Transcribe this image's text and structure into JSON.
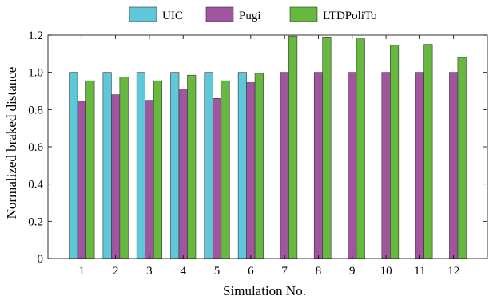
{
  "chart_data": {
    "type": "bar",
    "title": "",
    "xlabel": "Simulation No.",
    "ylabel": "Normalized braked distance",
    "categories": [
      "1",
      "2",
      "3",
      "4",
      "5",
      "6",
      "7",
      "8",
      "9",
      "10",
      "11",
      "12"
    ],
    "ylim": [
      0,
      1.2
    ],
    "yticks": [
      0,
      0.2,
      0.4,
      0.6,
      0.8,
      1.0,
      1.2
    ],
    "ytick_labels": [
      "0",
      "0.2",
      "0.4",
      "0.6",
      "0.8",
      "1.0",
      "1.2"
    ],
    "grid": false,
    "legend_position": "top",
    "series": [
      {
        "name": "UIC",
        "color": "#5ec8d8",
        "values": [
          1.0,
          1.0,
          1.0,
          1.0,
          1.0,
          1.0,
          0,
          0,
          0,
          0,
          0,
          0
        ]
      },
      {
        "name": "Pugi",
        "color": "#a2559f",
        "values": [
          0.845,
          0.88,
          0.85,
          0.91,
          0.86,
          0.945,
          1.0,
          1.0,
          1.0,
          1.0,
          1.0,
          1.0
        ]
      },
      {
        "name": "LTDPoliTo",
        "color": "#66b93e",
        "values": [
          0.955,
          0.975,
          0.955,
          0.985,
          0.955,
          0.995,
          1.195,
          1.19,
          1.18,
          1.145,
          1.15,
          1.08
        ]
      }
    ]
  }
}
